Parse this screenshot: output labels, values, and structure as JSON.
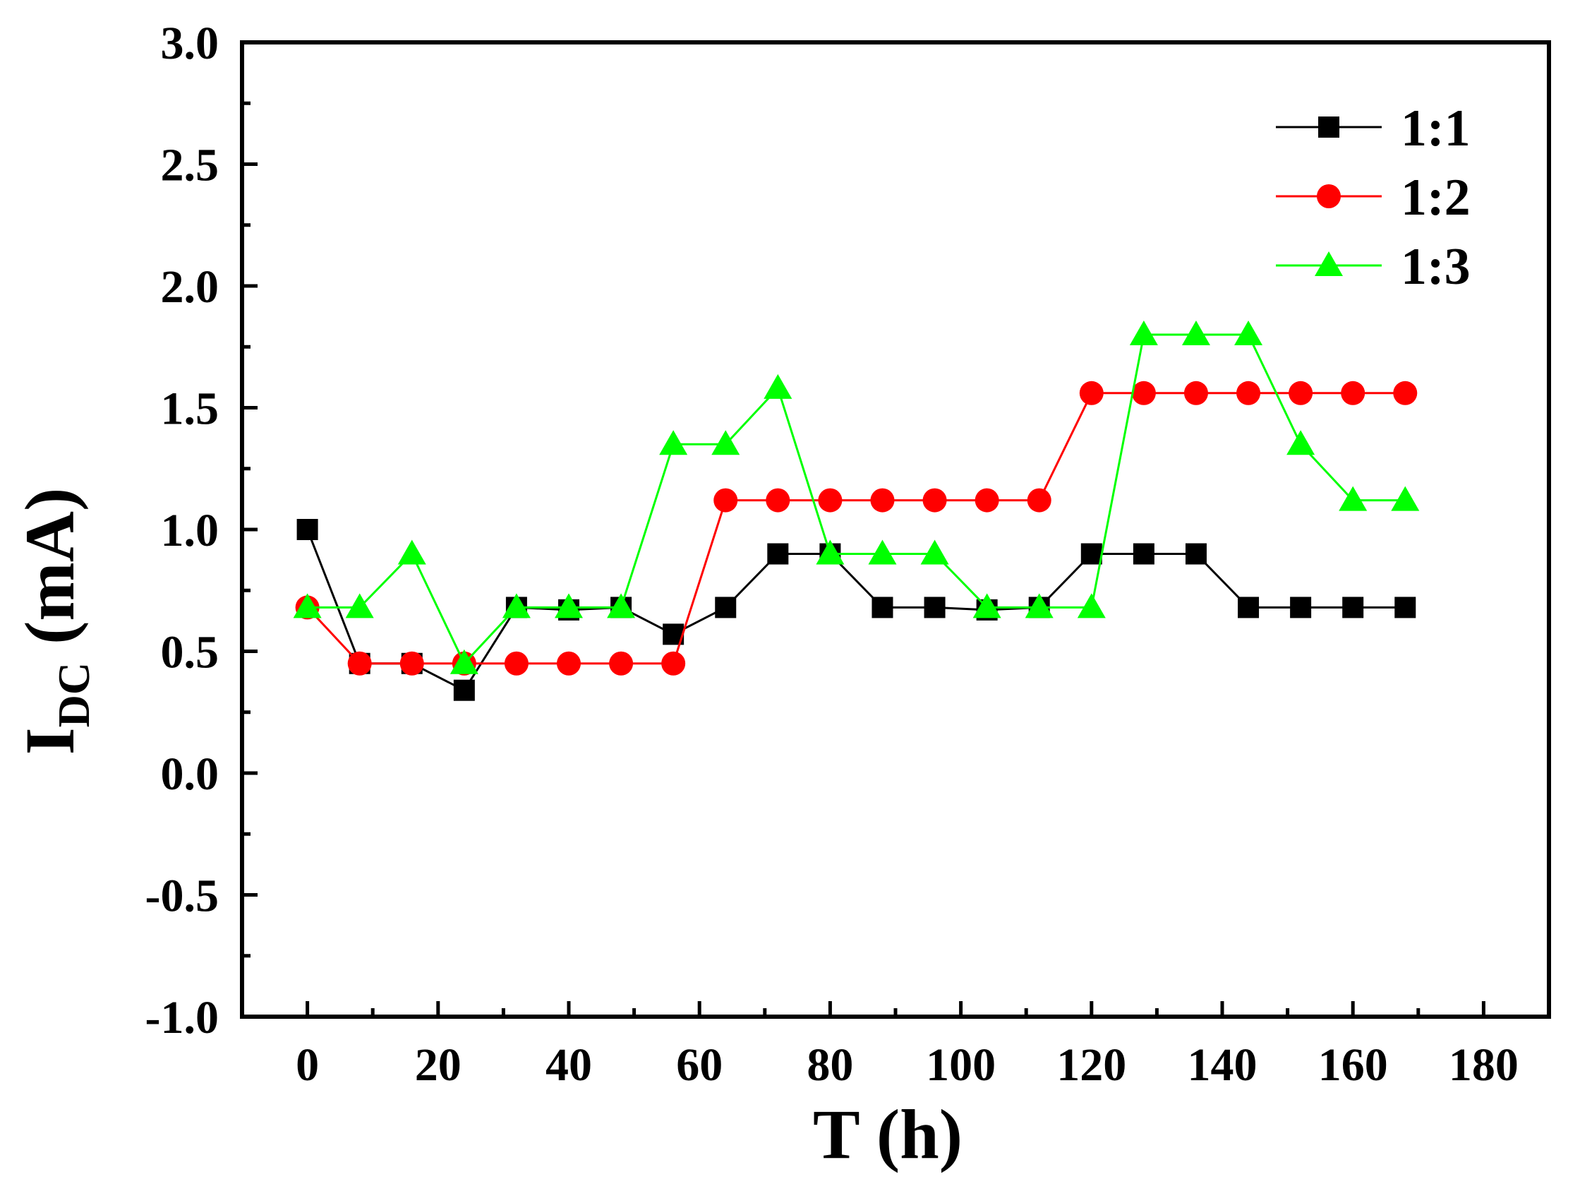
{
  "chart_data": {
    "type": "line",
    "xlabel": "T (h)",
    "ylabel_main": "I",
    "ylabel_sub": "DC",
    "ylabel_unit": " (mA)",
    "xlim": [
      -10,
      190
    ],
    "ylim": [
      -1.0,
      3.0
    ],
    "xticks": [
      "0",
      "20",
      "40",
      "60",
      "80",
      "100",
      "120",
      "140",
      "160",
      "180"
    ],
    "yticks": [
      "-1.0",
      "-0.5",
      "0.0",
      "0.5",
      "1.0",
      "1.5",
      "2.0",
      "2.5",
      "3.0"
    ],
    "grid": false,
    "legend_position": "top-right",
    "x": [
      0,
      8,
      16,
      24,
      32,
      40,
      48,
      56,
      64,
      72,
      80,
      88,
      96,
      104,
      112,
      120,
      128,
      136,
      144,
      152,
      160,
      168
    ],
    "series": [
      {
        "name": "1:1",
        "color": "#000000",
        "marker": "square",
        "values": [
          1.0,
          0.45,
          0.45,
          0.34,
          0.68,
          0.67,
          0.68,
          0.57,
          0.68,
          0.9,
          0.9,
          0.68,
          0.68,
          0.67,
          0.68,
          0.9,
          0.9,
          0.9,
          0.68,
          0.68,
          0.68,
          0.68
        ]
      },
      {
        "name": "1:2",
        "color": "#ff0000",
        "marker": "circle",
        "values": [
          0.68,
          0.45,
          0.45,
          0.45,
          0.45,
          0.45,
          0.45,
          0.45,
          1.12,
          1.12,
          1.12,
          1.12,
          1.12,
          1.12,
          1.12,
          1.56,
          1.56,
          1.56,
          1.56,
          1.56,
          1.56,
          1.56
        ]
      },
      {
        "name": "1:3",
        "color": "#00ff00",
        "marker": "triangle",
        "values": [
          0.68,
          0.68,
          0.9,
          0.45,
          0.68,
          0.68,
          0.68,
          1.35,
          1.35,
          1.58,
          0.9,
          0.9,
          0.9,
          0.68,
          0.68,
          0.68,
          1.8,
          1.8,
          1.8,
          1.35,
          1.12,
          1.12
        ]
      }
    ]
  }
}
